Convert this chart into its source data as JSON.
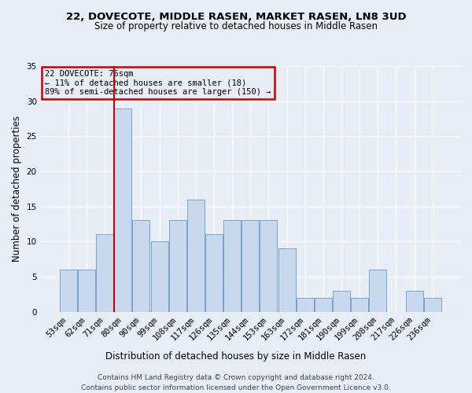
{
  "title": "22, DOVECOTE, MIDDLE RASEN, MARKET RASEN, LN8 3UD",
  "subtitle": "Size of property relative to detached houses in Middle Rasen",
  "xlabel": "Distribution of detached houses by size in Middle Rasen",
  "ylabel": "Number of detached properties",
  "footnote1": "Contains HM Land Registry data © Crown copyright and database right 2024.",
  "footnote2": "Contains public sector information licensed under the Open Government Licence v3.0.",
  "annotation_line1": "22 DOVECOTE: 76sqm",
  "annotation_line2": "← 11% of detached houses are smaller (18)",
  "annotation_line3": "89% of semi-detached houses are larger (150) →",
  "bar_labels": [
    "53sqm",
    "62sqm",
    "71sqm",
    "80sqm",
    "90sqm",
    "99sqm",
    "108sqm",
    "117sqm",
    "126sqm",
    "135sqm",
    "144sqm",
    "153sqm",
    "163sqm",
    "172sqm",
    "181sqm",
    "190sqm",
    "199sqm",
    "208sqm",
    "217sqm",
    "226sqm",
    "236sqm"
  ],
  "bar_values": [
    6,
    6,
    11,
    29,
    13,
    10,
    13,
    16,
    11,
    13,
    13,
    13,
    9,
    2,
    2,
    3,
    2,
    6,
    0,
    3,
    2
  ],
  "bar_color": "#c9d9ed",
  "bar_edge_color": "#6699cc",
  "vline_pos": 3,
  "vline_color": "#cc0000",
  "annotation_box_edgecolor": "#cc0000",
  "bg_color": "#e8edf5",
  "ylim": [
    0,
    35
  ],
  "yticks": [
    0,
    5,
    10,
    15,
    20,
    25,
    30,
    35
  ],
  "title_fontsize": 9.5,
  "subtitle_fontsize": 8.5,
  "ylabel_fontsize": 8.5,
  "xlabel_fontsize": 8.5,
  "tick_fontsize": 7.5,
  "annot_fontsize": 7.5,
  "footnote_fontsize": 6.5
}
